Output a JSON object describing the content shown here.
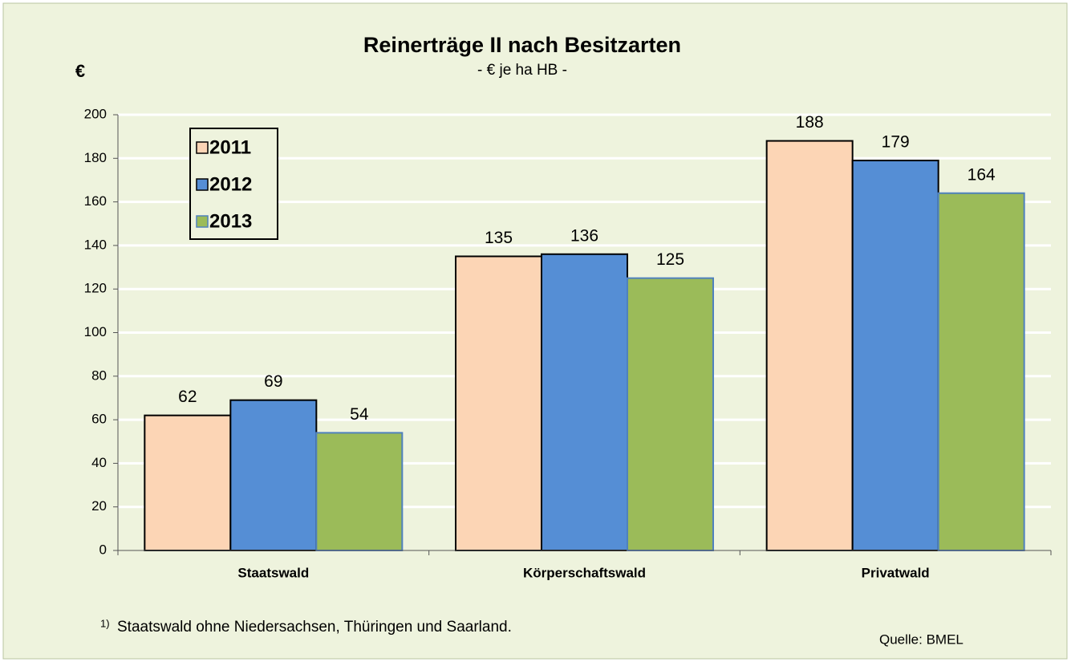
{
  "chart_data": {
    "type": "bar",
    "title": "Reinerträge II nach Besitzarten",
    "subtitle": "- € je ha HB -",
    "y_label": "€",
    "categories": [
      "Staatswald",
      "Körperschaftswald",
      "Privatwald"
    ],
    "series": [
      {
        "name": "2011",
        "color": "#fcd5b5",
        "edgecolor": "#000000",
        "values": [
          62,
          135,
          188
        ]
      },
      {
        "name": "2012",
        "color": "#558ed5",
        "edgecolor": "#000000",
        "values": [
          69,
          136,
          179
        ]
      },
      {
        "name": "2013",
        "color": "#9bbb59",
        "edgecolor": "#4f81bd",
        "values": [
          54,
          125,
          164
        ]
      }
    ],
    "ylim": [
      0,
      200
    ],
    "yticks": [
      0,
      20,
      40,
      60,
      80,
      100,
      120,
      140,
      160,
      180,
      200
    ],
    "grid": true,
    "legend": "upper left",
    "footnote_marker": "1)",
    "footnote": "Staatswald  ohne Niedersachsen, Thüringen und Saarland.",
    "source": "Quelle:  BMEL"
  }
}
